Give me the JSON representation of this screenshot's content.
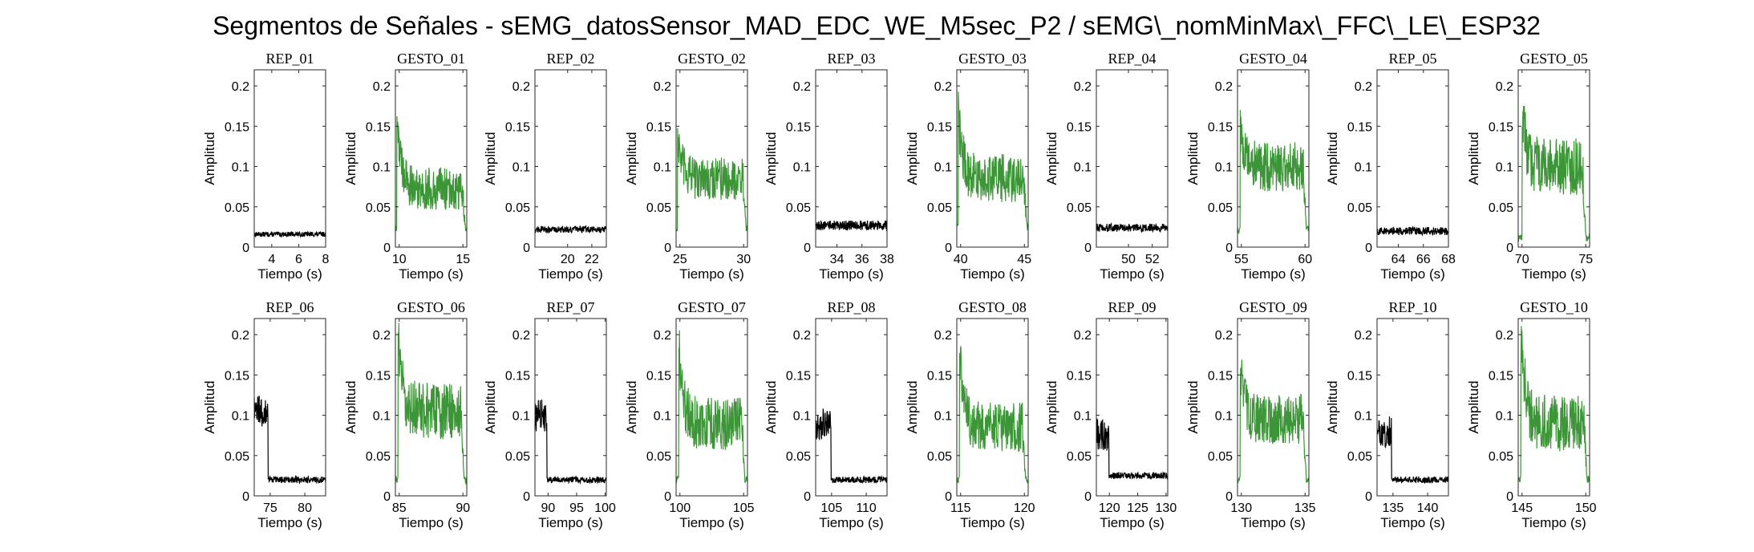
{
  "figure": {
    "title": "Segmentos de Señales - sEMG_datosSensor_MAD_EDC_WE_M5sec_P2 / sEMG\\_nomMinMax\\_FFC\\_LE\\_ESP32"
  },
  "colors": {
    "rep": "#000000",
    "gesto": "#3c9637",
    "axis": "#262626"
  },
  "chart_data": [
    {
      "type": "line",
      "title": "REP_01",
      "xlabel": "Tiempo (s)",
      "ylabel": "Amplitud",
      "xlim": [
        2.7,
        8
      ],
      "ylim": [
        0,
        0.22
      ],
      "xticks": [
        4,
        6,
        8
      ],
      "yticks": [
        0,
        0.05,
        0.1,
        0.15,
        0.2
      ],
      "kind": "rep",
      "profile": {
        "base": 0.016,
        "noise": 0.003
      }
    },
    {
      "type": "line",
      "title": "GESTO_01",
      "xlabel": "Tiempo (s)",
      "ylabel": "Amplitud",
      "xlim": [
        9.7,
        15.3
      ],
      "ylim": [
        0,
        0.22
      ],
      "xticks": [
        10,
        15
      ],
      "yticks": [
        0,
        0.05,
        0.1,
        0.15,
        0.2
      ],
      "kind": "gesto",
      "profile": {
        "start": 9.8,
        "end": 15.2,
        "peak": 0.17,
        "level": 0.072,
        "noise": 0.012,
        "rest": 0.022
      }
    },
    {
      "type": "line",
      "title": "REP_02",
      "xlabel": "Tiempo (s)",
      "ylabel": "Amplitud",
      "xlim": [
        17.3,
        23.2
      ],
      "ylim": [
        0,
        0.22
      ],
      "xticks": [
        20,
        22
      ],
      "yticks": [
        0,
        0.05,
        0.1,
        0.15,
        0.2
      ],
      "kind": "rep",
      "profile": {
        "base": 0.022,
        "noise": 0.004
      }
    },
    {
      "type": "line",
      "title": "GESTO_02",
      "xlabel": "Tiempo (s)",
      "ylabel": "Amplitud",
      "xlim": [
        24.7,
        30.3
      ],
      "ylim": [
        0,
        0.22
      ],
      "xticks": [
        25,
        30
      ],
      "yticks": [
        0,
        0.05,
        0.1,
        0.15,
        0.2
      ],
      "kind": "gesto",
      "profile": {
        "start": 24.8,
        "end": 30.2,
        "peak": 0.14,
        "level": 0.085,
        "noise": 0.012,
        "rest": 0.022
      }
    },
    {
      "type": "line",
      "title": "REP_03",
      "xlabel": "Tiempo (s)",
      "ylabel": "Amplitud",
      "xlim": [
        32.3,
        38
      ],
      "ylim": [
        0,
        0.22
      ],
      "xticks": [
        34,
        36,
        38
      ],
      "yticks": [
        0,
        0.05,
        0.1,
        0.15,
        0.2
      ],
      "kind": "rep",
      "profile": {
        "base": 0.027,
        "noise": 0.006
      }
    },
    {
      "type": "line",
      "title": "GESTO_03",
      "xlabel": "Tiempo (s)",
      "ylabel": "Amplitud",
      "xlim": [
        39.7,
        45.3
      ],
      "ylim": [
        0,
        0.22
      ],
      "xticks": [
        40,
        45
      ],
      "yticks": [
        0,
        0.05,
        0.1,
        0.15,
        0.2
      ],
      "kind": "gesto",
      "profile": {
        "start": 39.8,
        "end": 45.2,
        "peak": 0.17,
        "level": 0.085,
        "noise": 0.014,
        "rest": 0.025
      }
    },
    {
      "type": "line",
      "title": "REP_04",
      "xlabel": "Tiempo (s)",
      "ylabel": "Amplitud",
      "xlim": [
        47.3,
        53.3
      ],
      "ylim": [
        0,
        0.22
      ],
      "xticks": [
        50,
        52
      ],
      "yticks": [
        0,
        0.05,
        0.1,
        0.15,
        0.2
      ],
      "kind": "rep",
      "profile": {
        "base": 0.024,
        "noise": 0.005
      }
    },
    {
      "type": "line",
      "title": "GESTO_04",
      "xlabel": "Tiempo (s)",
      "ylabel": "Amplitud",
      "xlim": [
        54.7,
        60.3
      ],
      "ylim": [
        0,
        0.22
      ],
      "xticks": [
        55,
        60
      ],
      "yticks": [
        0,
        0.05,
        0.1,
        0.15,
        0.2
      ],
      "kind": "gesto",
      "profile": {
        "start": 54.9,
        "end": 60.1,
        "peak": 0.15,
        "level": 0.1,
        "noise": 0.014,
        "rest": 0.022
      }
    },
    {
      "type": "line",
      "title": "REP_05",
      "xlabel": "Tiempo (s)",
      "ylabel": "Amplitud",
      "xlim": [
        62.3,
        68
      ],
      "ylim": [
        0,
        0.22
      ],
      "xticks": [
        64,
        66,
        68
      ],
      "yticks": [
        0,
        0.05,
        0.1,
        0.15,
        0.2
      ],
      "kind": "rep",
      "profile": {
        "base": 0.02,
        "noise": 0.005
      }
    },
    {
      "type": "line",
      "title": "GESTO_05",
      "xlabel": "Tiempo (s)",
      "ylabel": "Amplitud",
      "xlim": [
        69.7,
        75.3
      ],
      "ylim": [
        0,
        0.22
      ],
      "xticks": [
        70,
        75
      ],
      "yticks": [
        0,
        0.05,
        0.1,
        0.15,
        0.2
      ],
      "kind": "gesto",
      "profile": {
        "start": 70.0,
        "end": 75.0,
        "peak": 0.17,
        "level": 0.1,
        "noise": 0.016,
        "rest": 0.012
      }
    },
    {
      "type": "line",
      "title": "REP_06",
      "xlabel": "Tiempo (s)",
      "ylabel": "Amplitud",
      "xlim": [
        72.7,
        83
      ],
      "ylim": [
        0,
        0.22
      ],
      "xticks": [
        75,
        80
      ],
      "yticks": [
        0,
        0.05,
        0.1,
        0.15,
        0.2
      ],
      "kind": "rep_tail",
      "profile": {
        "active_end": 74.7,
        "active": 0.105,
        "base": 0.02,
        "noise": 0.004
      }
    },
    {
      "type": "line",
      "title": "GESTO_06",
      "xlabel": "Tiempo (s)",
      "ylabel": "Amplitud",
      "xlim": [
        84.7,
        90.3
      ],
      "ylim": [
        0,
        0.22
      ],
      "xticks": [
        85,
        90
      ],
      "yticks": [
        0,
        0.05,
        0.1,
        0.15,
        0.2
      ],
      "kind": "gesto",
      "profile": {
        "start": 84.9,
        "end": 90.1,
        "peak": 0.2,
        "level": 0.105,
        "noise": 0.016,
        "rest": 0.02
      }
    },
    {
      "type": "line",
      "title": "REP_07",
      "xlabel": "Tiempo (s)",
      "ylabel": "Amplitud",
      "xlim": [
        87.7,
        100.2
      ],
      "ylim": [
        0,
        0.22
      ],
      "xticks": [
        90,
        95,
        100
      ],
      "yticks": [
        0,
        0.05,
        0.1,
        0.15,
        0.2
      ],
      "kind": "rep_tail",
      "profile": {
        "active_end": 89.8,
        "active": 0.1,
        "base": 0.02,
        "noise": 0.004
      }
    },
    {
      "type": "line",
      "title": "GESTO_07",
      "xlabel": "Tiempo (s)",
      "ylabel": "Amplitud",
      "xlim": [
        99.7,
        105.3
      ],
      "ylim": [
        0,
        0.22
      ],
      "xticks": [
        100,
        105
      ],
      "yticks": [
        0,
        0.05,
        0.1,
        0.15,
        0.2
      ],
      "kind": "gesto",
      "profile": {
        "start": 99.9,
        "end": 105.1,
        "peak": 0.19,
        "level": 0.09,
        "noise": 0.015,
        "rest": 0.02
      }
    },
    {
      "type": "line",
      "title": "REP_08",
      "xlabel": "Tiempo (s)",
      "ylabel": "Amplitud",
      "xlim": [
        102.7,
        113
      ],
      "ylim": [
        0,
        0.22
      ],
      "xticks": [
        105,
        110
      ],
      "yticks": [
        0,
        0.05,
        0.1,
        0.15,
        0.2
      ],
      "kind": "rep_tail",
      "profile": {
        "active_end": 104.9,
        "active": 0.09,
        "base": 0.02,
        "noise": 0.004
      }
    },
    {
      "type": "line",
      "title": "GESTO_08",
      "xlabel": "Tiempo (s)",
      "ylabel": "Amplitud",
      "xlim": [
        114.7,
        120.3
      ],
      "ylim": [
        0,
        0.22
      ],
      "xticks": [
        115,
        120
      ],
      "yticks": [
        0,
        0.05,
        0.1,
        0.15,
        0.2
      ],
      "kind": "gesto",
      "profile": {
        "start": 114.9,
        "end": 120.1,
        "peak": 0.19,
        "level": 0.085,
        "noise": 0.014,
        "rest": 0.02
      }
    },
    {
      "type": "line",
      "title": "REP_09",
      "xlabel": "Tiempo (s)",
      "ylabel": "Amplitud",
      "xlim": [
        117.7,
        130.3
      ],
      "ylim": [
        0,
        0.22
      ],
      "xticks": [
        120,
        125,
        130
      ],
      "yticks": [
        0,
        0.05,
        0.1,
        0.15,
        0.2
      ],
      "kind": "rep_tail",
      "profile": {
        "active_end": 119.9,
        "active": 0.075,
        "base": 0.025,
        "noise": 0.004
      }
    },
    {
      "type": "line",
      "title": "GESTO_09",
      "xlabel": "Tiempo (s)",
      "ylabel": "Amplitud",
      "xlim": [
        129.7,
        135.3
      ],
      "ylim": [
        0,
        0.22
      ],
      "xticks": [
        130,
        135
      ],
      "yticks": [
        0,
        0.05,
        0.1,
        0.15,
        0.2
      ],
      "kind": "gesto",
      "profile": {
        "start": 129.9,
        "end": 135.1,
        "peak": 0.16,
        "level": 0.095,
        "noise": 0.014,
        "rest": 0.02
      }
    },
    {
      "type": "line",
      "title": "REP_10",
      "xlabel": "Tiempo (s)",
      "ylabel": "Amplitud",
      "xlim": [
        132.7,
        143
      ],
      "ylim": [
        0,
        0.22
      ],
      "xticks": [
        135,
        140
      ],
      "yticks": [
        0,
        0.05,
        0.1,
        0.15,
        0.2
      ],
      "kind": "rep_tail",
      "profile": {
        "active_end": 134.8,
        "active": 0.08,
        "base": 0.02,
        "noise": 0.004
      }
    },
    {
      "type": "line",
      "title": "GESTO_10",
      "xlabel": "Tiempo (s)",
      "ylabel": "Amplitud",
      "xlim": [
        144.7,
        150.3
      ],
      "ylim": [
        0,
        0.22
      ],
      "xticks": [
        145,
        150
      ],
      "yticks": [
        0,
        0.05,
        0.1,
        0.15,
        0.2
      ],
      "kind": "gesto",
      "profile": {
        "start": 144.9,
        "end": 150.1,
        "peak": 0.21,
        "level": 0.09,
        "noise": 0.016,
        "rest": 0.02
      }
    }
  ]
}
